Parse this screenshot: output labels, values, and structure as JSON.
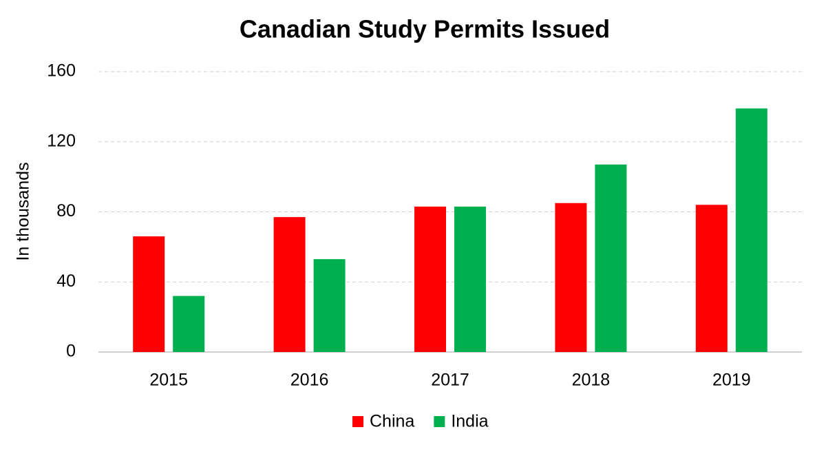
{
  "chart_data": {
    "type": "bar",
    "title": "Canadian Study Permits Issued",
    "y_label": "In thousands",
    "categories": [
      "2015",
      "2016",
      "2017",
      "2018",
      "2019"
    ],
    "series": [
      {
        "name": "China",
        "color": "#ff0000",
        "values": [
          66,
          77,
          83,
          85,
          84
        ]
      },
      {
        "name": "India",
        "color": "#00b050",
        "values": [
          32,
          53,
          83,
          107,
          139
        ]
      }
    ],
    "ylim": [
      0,
      160
    ],
    "yticks": [
      0,
      40,
      80,
      120,
      160
    ],
    "grid": true,
    "legend": "bottom"
  }
}
